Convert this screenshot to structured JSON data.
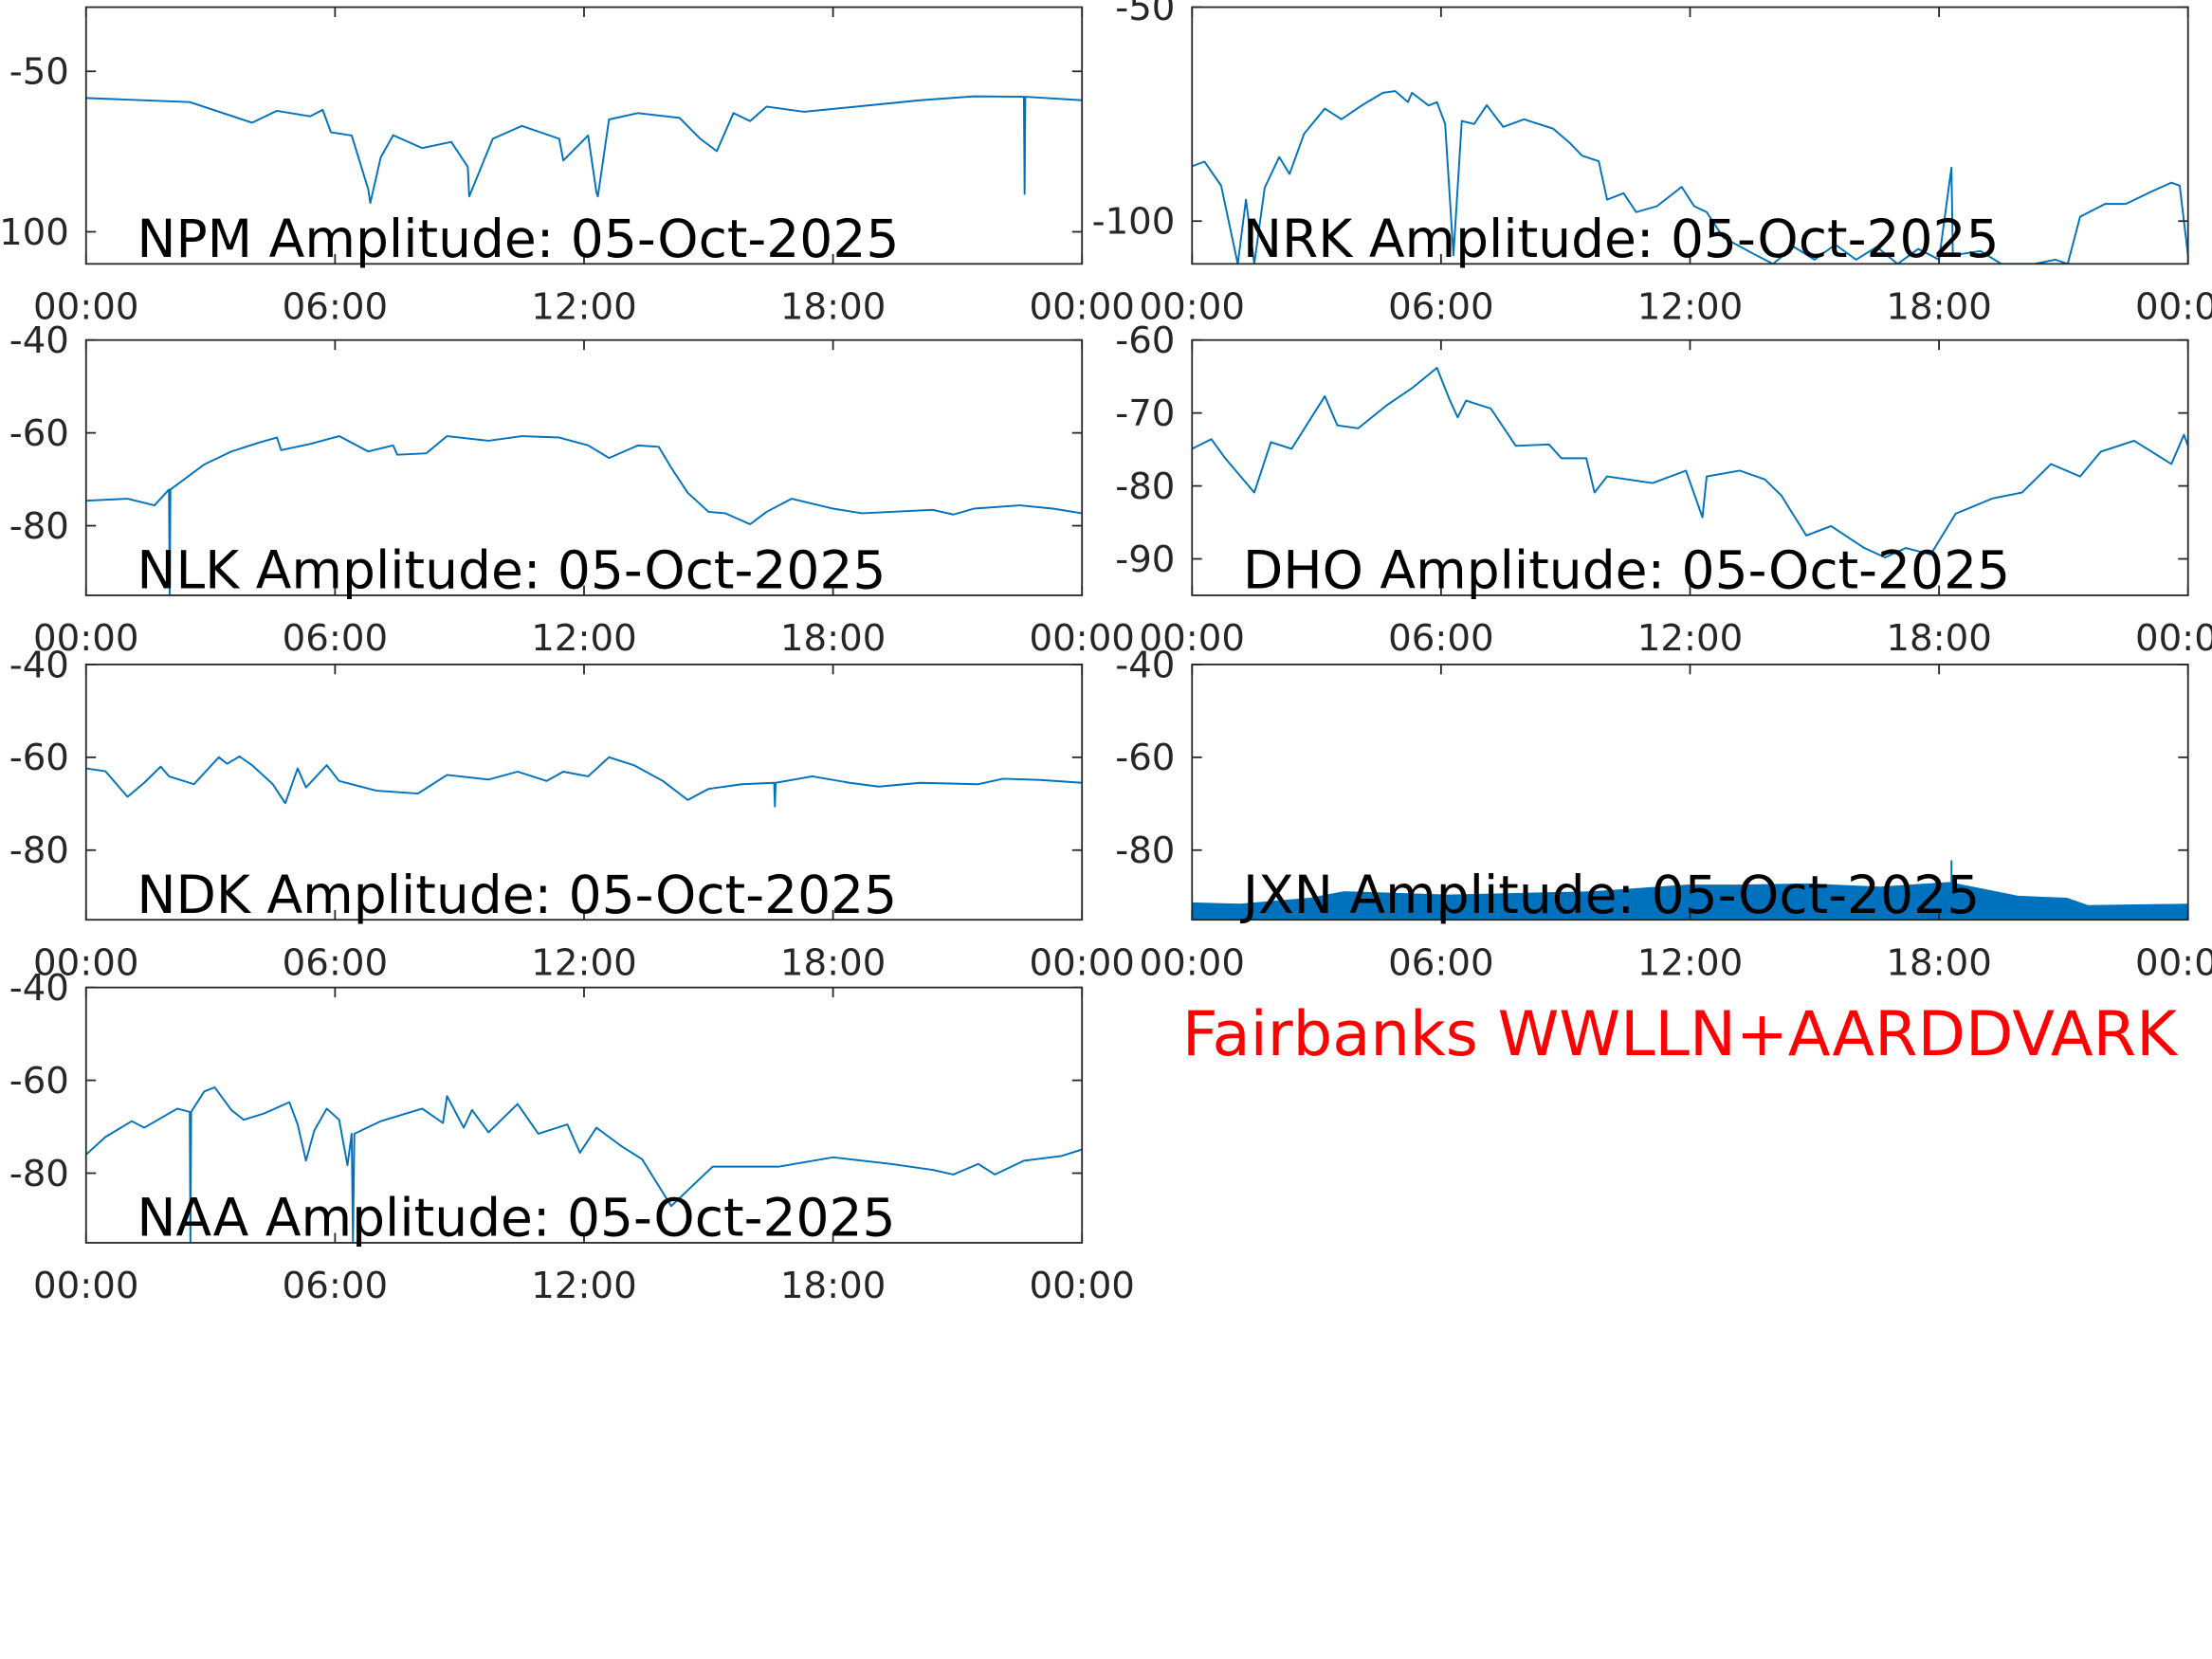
{
  "footer": {
    "text": "Fairbanks WWLLN+AARDDVARK",
    "color": "#ff0000"
  },
  "line_color": "#0072BD",
  "chart_data": [
    {
      "type": "line",
      "title": "NPM Amplitude: 05-Oct-2025",
      "xlim": [
        "00:00",
        "24:00"
      ],
      "xticks": [
        "00:00",
        "06:00",
        "12:00",
        "18:00",
        "00:00"
      ],
      "ylim": [
        -110,
        -30
      ],
      "yticks": [
        -100,
        -50
      ],
      "grid": false,
      "points": [
        [
          "00:00",
          -58.3
        ],
        [
          "02:30",
          -59.6
        ],
        [
          "04:00",
          -66
        ],
        [
          "04:36",
          -62.3
        ],
        [
          "05:24",
          -64
        ],
        [
          "05:42",
          -62
        ],
        [
          "05:54",
          -69
        ],
        [
          "06:24",
          -70
        ],
        [
          "06:48",
          -86.7
        ],
        [
          "06:51",
          -91
        ],
        [
          "07:06",
          -76.8
        ],
        [
          "07:24",
          -69.9
        ],
        [
          "08:06",
          -73.9
        ],
        [
          "08:48",
          -72
        ],
        [
          "09:12",
          -79.8
        ],
        [
          "09:14",
          -89
        ],
        [
          "09:48",
          -71
        ],
        [
          "10:30",
          -67
        ],
        [
          "11:24",
          -71
        ],
        [
          "11:30",
          -77.8
        ],
        [
          "12:06",
          -70
        ],
        [
          "12:18",
          -87.7
        ],
        [
          "12:20",
          -89
        ],
        [
          "12:36",
          -65
        ],
        [
          "13:18",
          -63
        ],
        [
          "14:18",
          -64.5
        ],
        [
          "14:48",
          -71
        ],
        [
          "15:12",
          -74.9
        ],
        [
          "15:36",
          -63
        ],
        [
          "16:00",
          -65.5
        ],
        [
          "16:24",
          -61
        ],
        [
          "17:18",
          -62.6
        ],
        [
          "20:06",
          -59
        ],
        [
          "21:24",
          -57.8
        ],
        [
          "22:36",
          -57.9
        ],
        [
          "22:37",
          -88.2
        ],
        [
          "22:38",
          -57.9
        ],
        [
          "24:00",
          -59
        ]
      ]
    },
    {
      "type": "line",
      "title": "NRK Amplitude: 05-Oct-2025",
      "xlim": [
        "00:00",
        "24:00"
      ],
      "xticks": [
        "00:00",
        "06:00",
        "12:00",
        "18:00",
        "00:00"
      ],
      "ylim": [
        -110,
        -50
      ],
      "yticks": [
        -100,
        -50
      ],
      "grid": false,
      "points": [
        [
          "00:00",
          -87.2
        ],
        [
          "00:18",
          -86.1
        ],
        [
          "00:42",
          -91.7
        ],
        [
          "01:06",
          -110
        ],
        [
          "01:18",
          -95
        ],
        [
          "01:30",
          -110
        ],
        [
          "01:45",
          -92.2
        ],
        [
          "02:06",
          -85
        ],
        [
          "02:21",
          -89
        ],
        [
          "02:42",
          -79.6
        ],
        [
          "03:12",
          -73.7
        ],
        [
          "03:36",
          -76.2
        ],
        [
          "04:06",
          -72.9
        ],
        [
          "04:36",
          -70
        ],
        [
          "04:54",
          -69.6
        ],
        [
          "05:12",
          -72.2
        ],
        [
          "05:18",
          -70
        ],
        [
          "05:42",
          -73
        ],
        [
          "05:54",
          -72.2
        ],
        [
          "06:06",
          -77.3
        ],
        [
          "06:18",
          -108
        ],
        [
          "06:30",
          -76.6
        ],
        [
          "06:48",
          -77.3
        ],
        [
          "07:06",
          -72.9
        ],
        [
          "07:30",
          -78
        ],
        [
          "08:00",
          -76.2
        ],
        [
          "08:42",
          -78.4
        ],
        [
          "09:06",
          -81.7
        ],
        [
          "09:24",
          -84.7
        ],
        [
          "09:48",
          -86
        ],
        [
          "10:00",
          -95
        ],
        [
          "10:24",
          -93.5
        ],
        [
          "10:42",
          -97.9
        ],
        [
          "11:12",
          -96.5
        ],
        [
          "11:48",
          -92
        ],
        [
          "12:06",
          -96.5
        ],
        [
          "12:24",
          -97.9
        ],
        [
          "12:48",
          -103.8
        ],
        [
          "13:30",
          -107.5
        ],
        [
          "14:00",
          -110
        ],
        [
          "14:30",
          -106
        ],
        [
          "15:00",
          -109
        ],
        [
          "15:30",
          -105.5
        ],
        [
          "16:00",
          -109
        ],
        [
          "16:30",
          -106
        ],
        [
          "17:00",
          -110
        ],
        [
          "17:30",
          -106.5
        ],
        [
          "18:00",
          -109
        ],
        [
          "18:18",
          -87.5
        ],
        [
          "18:20",
          -108
        ],
        [
          "19:00",
          -107
        ],
        [
          "19:30",
          -110
        ],
        [
          "20:18",
          -110
        ],
        [
          "20:48",
          -109
        ],
        [
          "21:06",
          -110
        ],
        [
          "21:24",
          -99
        ],
        [
          "22:00",
          -96
        ],
        [
          "22:30",
          -96
        ],
        [
          "23:06",
          -93.2
        ],
        [
          "23:36",
          -91
        ],
        [
          "23:48",
          -91.7
        ],
        [
          "24:00",
          -108
        ]
      ]
    },
    {
      "type": "line",
      "title": "NLK Amplitude: 05-Oct-2025",
      "xlim": [
        "00:00",
        "24:00"
      ],
      "xticks": [
        "00:00",
        "06:00",
        "12:00",
        "18:00",
        "00:00"
      ],
      "ylim": [
        -95,
        -40
      ],
      "yticks": [
        -80,
        -60,
        -40
      ],
      "grid": false,
      "points": [
        [
          "00:00",
          -74.6
        ],
        [
          "01:00",
          -74.2
        ],
        [
          "01:39",
          -75.6
        ],
        [
          "02:00",
          -72.2
        ],
        [
          "02:01",
          -95
        ],
        [
          "02:02",
          -72.2
        ],
        [
          "02:51",
          -66.8
        ],
        [
          "03:30",
          -64
        ],
        [
          "04:12",
          -62
        ],
        [
          "04:36",
          -61
        ],
        [
          "04:42",
          -63.7
        ],
        [
          "05:24",
          -62.4
        ],
        [
          "06:06",
          -60.7
        ],
        [
          "06:48",
          -64
        ],
        [
          "07:24",
          -62.7
        ],
        [
          "07:30",
          -64.7
        ],
        [
          "08:12",
          -64.4
        ],
        [
          "08:42",
          -60.7
        ],
        [
          "09:42",
          -61.7
        ],
        [
          "10:30",
          -60.7
        ],
        [
          "11:24",
          -61
        ],
        [
          "12:06",
          -62.7
        ],
        [
          "12:36",
          -65.4
        ],
        [
          "13:18",
          -62.7
        ],
        [
          "13:48",
          -63
        ],
        [
          "14:06",
          -67.5
        ],
        [
          "14:30",
          -72.9
        ],
        [
          "15:00",
          -77
        ],
        [
          "15:24",
          -77.3
        ],
        [
          "16:00",
          -79.7
        ],
        [
          "16:24",
          -77
        ],
        [
          "17:00",
          -74.2
        ],
        [
          "18:00",
          -76.3
        ],
        [
          "18:42",
          -77.3
        ],
        [
          "20:24",
          -76.6
        ],
        [
          "20:54",
          -77.6
        ],
        [
          "21:24",
          -76.3
        ],
        [
          "22:30",
          -75.6
        ],
        [
          "23:18",
          -76.3
        ],
        [
          "24:00",
          -77.3
        ]
      ]
    },
    {
      "type": "line",
      "title": "DHO Amplitude: 05-Oct-2025",
      "xlim": [
        "00:00",
        "24:00"
      ],
      "xticks": [
        "00:00",
        "06:00",
        "12:00",
        "18:00",
        "00:00"
      ],
      "ylim": [
        -95,
        -60
      ],
      "yticks": [
        -90,
        -80,
        -70,
        -60
      ],
      "grid": false,
      "points": [
        [
          "00:00",
          -74.9
        ],
        [
          "00:28",
          -73.6
        ],
        [
          "00:48",
          -76.2
        ],
        [
          "01:30",
          -80.9
        ],
        [
          "01:54",
          -74
        ],
        [
          "02:24",
          -74.9
        ],
        [
          "03:12",
          -67.7
        ],
        [
          "03:30",
          -71.7
        ],
        [
          "04:00",
          -72.1
        ],
        [
          "04:42",
          -68.9
        ],
        [
          "05:18",
          -66.6
        ],
        [
          "05:54",
          -63.8
        ],
        [
          "06:12",
          -68.1
        ],
        [
          "06:24",
          -70.6
        ],
        [
          "06:36",
          -68.3
        ],
        [
          "07:12",
          -69.4
        ],
        [
          "07:48",
          -74.5
        ],
        [
          "08:36",
          -74.3
        ],
        [
          "08:54",
          -76.2
        ],
        [
          "09:30",
          -76.2
        ],
        [
          "09:42",
          -80.9
        ],
        [
          "10:00",
          -78.7
        ],
        [
          "11:06",
          -79.6
        ],
        [
          "11:54",
          -77.9
        ],
        [
          "12:18",
          -84.3
        ],
        [
          "12:24",
          -78.7
        ],
        [
          "13:12",
          -77.9
        ],
        [
          "13:48",
          -79.1
        ],
        [
          "14:12",
          -81.3
        ],
        [
          "14:48",
          -86.8
        ],
        [
          "15:24",
          -85.5
        ],
        [
          "16:12",
          -88.5
        ],
        [
          "16:42",
          -89.8
        ],
        [
          "17:12",
          -88.5
        ],
        [
          "17:48",
          -89.4
        ],
        [
          "18:24",
          -83.8
        ],
        [
          "19:18",
          -81.7
        ],
        [
          "20:00",
          -80.9
        ],
        [
          "20:42",
          -77
        ],
        [
          "21:24",
          -78.7
        ],
        [
          "21:54",
          -75.3
        ],
        [
          "22:42",
          -73.8
        ],
        [
          "23:36",
          -77
        ],
        [
          "23:54",
          -73
        ],
        [
          "24:00",
          -74.5
        ]
      ]
    },
    {
      "type": "line",
      "title": "NDK Amplitude: 05-Oct-2025",
      "xlim": [
        "00:00",
        "24:00"
      ],
      "xticks": [
        "00:00",
        "06:00",
        "12:00",
        "18:00",
        "00:00"
      ],
      "ylim": [
        -95,
        -40
      ],
      "yticks": [
        -80,
        -60,
        -40
      ],
      "grid": false,
      "points": [
        [
          "00:00",
          -62.4
        ],
        [
          "00:28",
          -63
        ],
        [
          "01:00",
          -68.5
        ],
        [
          "01:24",
          -65.5
        ],
        [
          "01:48",
          -62
        ],
        [
          "02:00",
          -64.1
        ],
        [
          "02:36",
          -65.8
        ],
        [
          "03:12",
          -60
        ],
        [
          "03:24",
          -61.4
        ],
        [
          "03:42",
          -59.8
        ],
        [
          "04:00",
          -61.7
        ],
        [
          "04:30",
          -65.8
        ],
        [
          "04:48",
          -69.9
        ],
        [
          "05:06",
          -62.4
        ],
        [
          "05:18",
          -66.5
        ],
        [
          "05:48",
          -61.7
        ],
        [
          "06:06",
          -65.1
        ],
        [
          "07:00",
          -67.2
        ],
        [
          "08:00",
          -67.8
        ],
        [
          "08:42",
          -63.8
        ],
        [
          "09:42",
          -64.8
        ],
        [
          "10:24",
          -63.1
        ],
        [
          "11:06",
          -65.1
        ],
        [
          "11:30",
          -63.1
        ],
        [
          "12:06",
          -64.1
        ],
        [
          "12:36",
          -60
        ],
        [
          "13:12",
          -61.7
        ],
        [
          "13:54",
          -65.1
        ],
        [
          "14:30",
          -69.2
        ],
        [
          "15:00",
          -66.8
        ],
        [
          "15:48",
          -65.8
        ],
        [
          "16:35",
          -65.5
        ],
        [
          "16:36",
          -70.6
        ],
        [
          "16:37",
          -65.5
        ],
        [
          "17:30",
          -64.1
        ],
        [
          "18:24",
          -65.5
        ],
        [
          "19:06",
          -66.3
        ],
        [
          "20:06",
          -65.5
        ],
        [
          "21:30",
          -65.8
        ],
        [
          "22:06",
          -64.6
        ],
        [
          "23:00",
          -64.9
        ],
        [
          "24:00",
          -65.5
        ]
      ]
    },
    {
      "type": "area",
      "title": "JXN Amplitude: 05-Oct-2025",
      "xlim": [
        "00:00",
        "24:00"
      ],
      "xticks": [
        "00:00",
        "06:00",
        "12:00",
        "18:00",
        "00:00"
      ],
      "ylim": [
        -95,
        -40
      ],
      "yticks": [
        -80,
        -60,
        -40
      ],
      "grid": false,
      "lower": -95,
      "points": [
        [
          "00:00",
          -91.4
        ],
        [
          "01:10",
          -91.7
        ],
        [
          "02:50",
          -90.4
        ],
        [
          "03:40",
          -89
        ],
        [
          "06:10",
          -89.7
        ],
        [
          "09:40",
          -89
        ],
        [
          "11:55",
          -87.6
        ],
        [
          "13:10",
          -87.6
        ],
        [
          "14:50",
          -87.3
        ],
        [
          "16:35",
          -88
        ],
        [
          "18:15",
          -87
        ],
        [
          "19:55",
          -90
        ],
        [
          "21:05",
          -90.4
        ],
        [
          "21:35",
          -92
        ],
        [
          "24:00",
          -91.7
        ]
      ],
      "spikes": [
        [
          "18:18",
          -82.2
        ]
      ]
    },
    {
      "type": "line",
      "title": "NAA Amplitude: 05-Oct-2025",
      "xlim": [
        "00:00",
        "24:00"
      ],
      "xticks": [
        "00:00",
        "06:00",
        "12:00",
        "18:00",
        "00:00"
      ],
      "ylim": [
        -95,
        -40
      ],
      "yticks": [
        -80,
        -60,
        -40
      ],
      "grid": false,
      "points": [
        [
          "00:00",
          -76
        ],
        [
          "00:28",
          -72.2
        ],
        [
          "01:06",
          -68.8
        ],
        [
          "01:24",
          -70.2
        ],
        [
          "02:12",
          -66.1
        ],
        [
          "02:30",
          -66.8
        ],
        [
          "02:31",
          -95
        ],
        [
          "02:32",
          -66.8
        ],
        [
          "02:51",
          -62.4
        ],
        [
          "03:06",
          -61.5
        ],
        [
          "03:30",
          -66.4
        ],
        [
          "03:48",
          -68.5
        ],
        [
          "04:18",
          -67.1
        ],
        [
          "04:54",
          -64.7
        ],
        [
          "05:06",
          -69.5
        ],
        [
          "05:18",
          -77.3
        ],
        [
          "05:30",
          -70.8
        ],
        [
          "05:48",
          -66.1
        ],
        [
          "06:06",
          -68.5
        ],
        [
          "06:18",
          -78.3
        ],
        [
          "06:24",
          -71.5
        ],
        [
          "06:26",
          -95
        ],
        [
          "06:28",
          -71.5
        ],
        [
          "07:06",
          -68.8
        ],
        [
          "08:06",
          -66.1
        ],
        [
          "08:36",
          -69.2
        ],
        [
          "08:42",
          -63.4
        ],
        [
          "09:06",
          -70.2
        ],
        [
          "09:18",
          -66.4
        ],
        [
          "09:42",
          -71.2
        ],
        [
          "10:24",
          -65.1
        ],
        [
          "10:54",
          -71.5
        ],
        [
          "11:36",
          -69.5
        ],
        [
          "11:54",
          -75.6
        ],
        [
          "12:18",
          -70.2
        ],
        [
          "12:54",
          -74.2
        ],
        [
          "13:24",
          -77
        ],
        [
          "14:06",
          -87.1
        ],
        [
          "14:30",
          -83.7
        ],
        [
          "15:06",
          -78.6
        ],
        [
          "16:42",
          -78.6
        ],
        [
          "18:00",
          -76.6
        ],
        [
          "19:24",
          -78
        ],
        [
          "20:24",
          -79.3
        ],
        [
          "20:54",
          -80.3
        ],
        [
          "21:30",
          -78
        ],
        [
          "21:54",
          -80.3
        ],
        [
          "22:36",
          -77.3
        ],
        [
          "23:30",
          -76.3
        ],
        [
          "24:00",
          -74.9
        ]
      ]
    }
  ]
}
